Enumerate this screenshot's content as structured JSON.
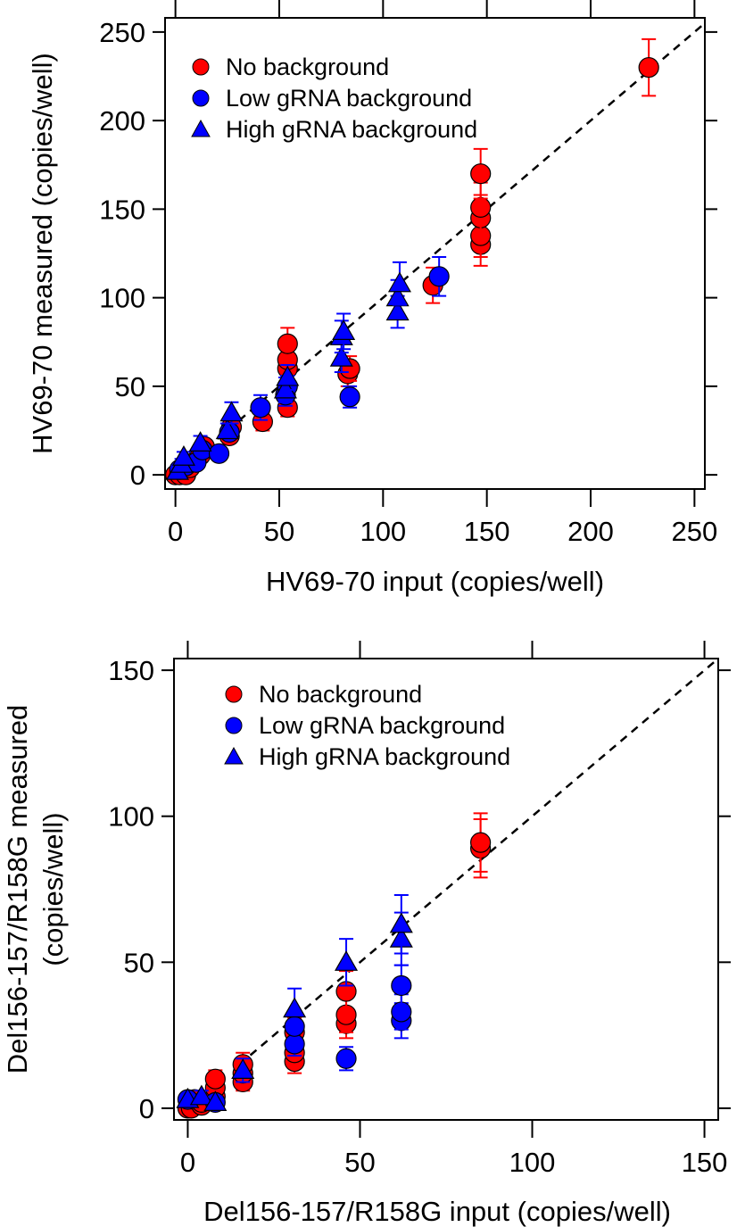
{
  "chart_data": [
    {
      "type": "scatter",
      "title": "",
      "xlabel": "HV69-70 input (copies/well)",
      "ylabel": "HV69-70 measured (copies/well)",
      "ylabel_lines": [
        "HV69-70 measured (copies/well)"
      ],
      "xlim": [
        -5,
        255
      ],
      "ylim": [
        -8,
        258
      ],
      "xticks": [
        0,
        50,
        100,
        150,
        200,
        250
      ],
      "yticks": [
        0,
        50,
        100,
        150,
        200,
        250
      ],
      "grid": false,
      "legend_position": "top-left",
      "reference_line": "y = x (dashed)",
      "series": [
        {
          "name": "No background",
          "marker": "circle",
          "color": "#ff0000",
          "points": [
            {
              "x": 0,
              "y": 0,
              "err": 1
            },
            {
              "x": 2,
              "y": 0,
              "err": 1
            },
            {
              "x": 5,
              "y": 0,
              "err": 1
            },
            {
              "x": 7,
              "y": 4,
              "err": 2
            },
            {
              "x": 10,
              "y": 8,
              "err": 2
            },
            {
              "x": 12,
              "y": 11,
              "err": 3
            },
            {
              "x": 14,
              "y": 16,
              "err": 3
            },
            {
              "x": 26,
              "y": 22,
              "err": 4
            },
            {
              "x": 27,
              "y": 27,
              "err": 4
            },
            {
              "x": 42,
              "y": 30,
              "err": 5
            },
            {
              "x": 54,
              "y": 38,
              "err": 5
            },
            {
              "x": 54,
              "y": 60,
              "err": 6
            },
            {
              "x": 54,
              "y": 65,
              "err": 6
            },
            {
              "x": 54,
              "y": 74,
              "err": 9
            },
            {
              "x": 83,
              "y": 57,
              "err": 7
            },
            {
              "x": 84,
              "y": 60,
              "err": 7
            },
            {
              "x": 124,
              "y": 107,
              "err": 10
            },
            {
              "x": 147,
              "y": 130,
              "err": 12
            },
            {
              "x": 147,
              "y": 135,
              "err": 12
            },
            {
              "x": 147,
              "y": 145,
              "err": 13
            },
            {
              "x": 147,
              "y": 151,
              "err": 14
            },
            {
              "x": 147,
              "y": 170,
              "err": 14
            },
            {
              "x": 228,
              "y": 230,
              "err": 16
            }
          ]
        },
        {
          "name": "Low gRNA background",
          "marker": "circle",
          "color": "#0000ff",
          "points": [
            {
              "x": 2,
              "y": 3,
              "err": 1
            },
            {
              "x": 5,
              "y": 5,
              "err": 2
            },
            {
              "x": 10,
              "y": 7,
              "err": 2
            },
            {
              "x": 13,
              "y": 14,
              "err": 3
            },
            {
              "x": 21,
              "y": 12,
              "err": 3
            },
            {
              "x": 26,
              "y": 24,
              "err": 4
            },
            {
              "x": 41,
              "y": 38,
              "err": 7
            },
            {
              "x": 53,
              "y": 45,
              "err": 6
            },
            {
              "x": 54,
              "y": 50,
              "err": 6
            },
            {
              "x": 84,
              "y": 44,
              "err": 6
            },
            {
              "x": 127,
              "y": 112,
              "err": 11
            }
          ]
        },
        {
          "name": "High gRNA background",
          "marker": "triangle",
          "color": "#0000ff",
          "points": [
            {
              "x": 1,
              "y": 2,
              "err": 2
            },
            {
              "x": 3,
              "y": 6,
              "err": 3
            },
            {
              "x": 4,
              "y": 10,
              "err": 3
            },
            {
              "x": 12,
              "y": 18,
              "err": 4
            },
            {
              "x": 25,
              "y": 25,
              "err": 4
            },
            {
              "x": 27,
              "y": 35,
              "err": 6
            },
            {
              "x": 53,
              "y": 48,
              "err": 7
            },
            {
              "x": 54,
              "y": 55,
              "err": 7
            },
            {
              "x": 80,
              "y": 66,
              "err": 8
            },
            {
              "x": 80,
              "y": 78,
              "err": 9
            },
            {
              "x": 81,
              "y": 81,
              "err": 10
            },
            {
              "x": 107,
              "y": 92,
              "err": 9
            },
            {
              "x": 107,
              "y": 100,
              "err": 10
            },
            {
              "x": 108,
              "y": 108,
              "err": 12
            }
          ]
        }
      ]
    },
    {
      "type": "scatter",
      "title": "",
      "xlabel": "Del156-157/R158G input (copies/well)",
      "ylabel": "Del156-157/R158G measured (copies/well)",
      "ylabel_lines": [
        "Del156-157/R158G measured",
        "(copies/well)"
      ],
      "xlim": [
        -4,
        154
      ],
      "ylim": [
        -4,
        154
      ],
      "xticks": [
        0,
        50,
        100,
        150
      ],
      "yticks": [
        0,
        50,
        100,
        150
      ],
      "grid": false,
      "legend_position": "top-left",
      "reference_line": "y = x (dashed)",
      "series": [
        {
          "name": "No background",
          "marker": "circle",
          "color": "#ff0000",
          "points": [
            {
              "x": 0,
              "y": 0,
              "err": 1
            },
            {
              "x": 1,
              "y": 0,
              "err": 1
            },
            {
              "x": 2,
              "y": 3,
              "err": 1
            },
            {
              "x": 4,
              "y": 1,
              "err": 1
            },
            {
              "x": 4,
              "y": 2,
              "err": 1
            },
            {
              "x": 8,
              "y": 4,
              "err": 2
            },
            {
              "x": 8,
              "y": 7,
              "err": 3
            },
            {
              "x": 8,
              "y": 10,
              "err": 3
            },
            {
              "x": 16,
              "y": 9,
              "err": 3
            },
            {
              "x": 16,
              "y": 12,
              "err": 4
            },
            {
              "x": 16,
              "y": 15,
              "err": 4
            },
            {
              "x": 31,
              "y": 16,
              "err": 4
            },
            {
              "x": 31,
              "y": 19,
              "err": 4
            },
            {
              "x": 31,
              "y": 26,
              "err": 5
            },
            {
              "x": 46,
              "y": 29,
              "err": 5
            },
            {
              "x": 46,
              "y": 32,
              "err": 6
            },
            {
              "x": 46,
              "y": 40,
              "err": 7
            },
            {
              "x": 85,
              "y": 89,
              "err": 10
            },
            {
              "x": 85,
              "y": 91,
              "err": 10
            }
          ]
        },
        {
          "name": "Low gRNA background",
          "marker": "circle",
          "color": "#0000ff",
          "points": [
            {
              "x": 0,
              "y": 3,
              "err": 1
            },
            {
              "x": 8,
              "y": 2,
              "err": 2
            },
            {
              "x": 31,
              "y": 22,
              "err": 4
            },
            {
              "x": 31,
              "y": 28,
              "err": 5
            },
            {
              "x": 46,
              "y": 17,
              "err": 4
            },
            {
              "x": 62,
              "y": 30,
              "err": 6
            },
            {
              "x": 62,
              "y": 33,
              "err": 6
            },
            {
              "x": 62,
              "y": 42,
              "err": 7
            }
          ]
        },
        {
          "name": "High gRNA background",
          "marker": "triangle",
          "color": "#0000ff",
          "points": [
            {
              "x": 0,
              "y": 3,
              "err": 1
            },
            {
              "x": 4,
              "y": 4,
              "err": 2
            },
            {
              "x": 8,
              "y": 2,
              "err": 2
            },
            {
              "x": 16,
              "y": 13,
              "err": 4
            },
            {
              "x": 31,
              "y": 34,
              "err": 7
            },
            {
              "x": 46,
              "y": 50,
              "err": 8
            },
            {
              "x": 62,
              "y": 58,
              "err": 9
            },
            {
              "x": 62,
              "y": 63,
              "err": 10
            }
          ]
        }
      ]
    }
  ]
}
